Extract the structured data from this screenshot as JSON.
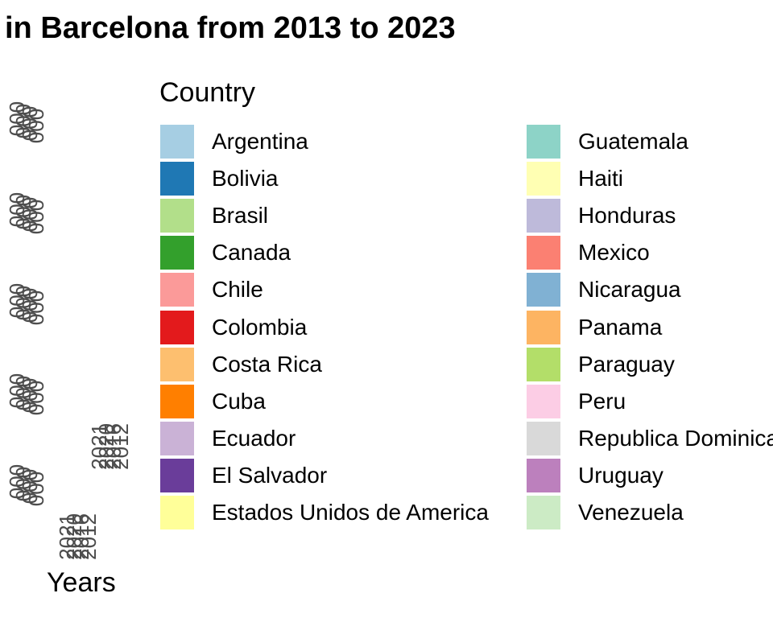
{
  "chart_data": {
    "type": "bar",
    "title": "in Barcelona from 2013 to 2023",
    "xlabel": "Years",
    "ylabel": "",
    "legend": {
      "title": "Country",
      "placement": "right",
      "entries": [
        {
          "name": "Argentina",
          "color": "#A6CEE3"
        },
        {
          "name": "Bolivia",
          "color": "#1F78B4"
        },
        {
          "name": "Brasil",
          "color": "#B2DF8A"
        },
        {
          "name": "Canada",
          "color": "#33A02C"
        },
        {
          "name": "Chile",
          "color": "#FB9A99"
        },
        {
          "name": "Colombia",
          "color": "#E31A1C"
        },
        {
          "name": "Costa Rica",
          "color": "#FDBF6F"
        },
        {
          "name": "Cuba",
          "color": "#FF7F00"
        },
        {
          "name": "Ecuador",
          "color": "#CAB2D6"
        },
        {
          "name": "El Salvador",
          "color": "#6A3D9A"
        },
        {
          "name": "Estados Unidos de America",
          "color": "#FFFF99"
        },
        {
          "name": "Guatemala",
          "color": "#8DD3C7"
        },
        {
          "name": "Haiti",
          "color": "#FFFFB3"
        },
        {
          "name": "Honduras",
          "color": "#BEBADA"
        },
        {
          "name": "Mexico",
          "color": "#FB8072"
        },
        {
          "name": "Nicaragua",
          "color": "#80B1D3"
        },
        {
          "name": "Panama",
          "color": "#FDB462"
        },
        {
          "name": "Paraguay",
          "color": "#B3DE69"
        },
        {
          "name": "Peru",
          "color": "#FCCDE5"
        },
        {
          "name": "Republica Dominicana",
          "color": "#D9D9D9"
        },
        {
          "name": "Uruguay",
          "color": "#BC80BD"
        },
        {
          "name": "Venezuela",
          "color": "#CCEBC5"
        }
      ]
    },
    "overlapping_y_tick_labels": [
      "000",
      "000",
      "000",
      "000",
      "000"
    ],
    "overlapping_x_tick_labels_upper": [
      "2021",
      "2020",
      "2016",
      "2012"
    ],
    "overlapping_x_tick_labels_lower": [
      "2021",
      "2020",
      "2016",
      "2012"
    ]
  }
}
